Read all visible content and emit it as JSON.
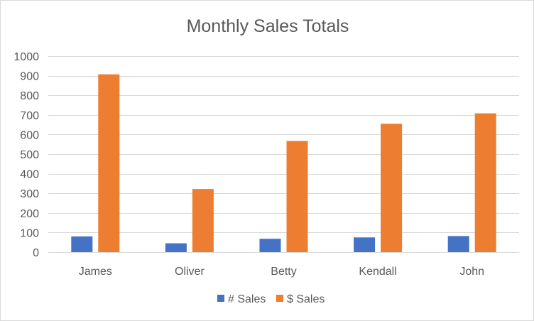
{
  "chart_data": {
    "type": "bar",
    "title": "Monthly Sales Totals",
    "categories": [
      "James",
      "Oliver",
      "Betty",
      "Kendall",
      "John"
    ],
    "series": [
      {
        "name": "# Sales",
        "values": [
          80,
          45,
          68,
          75,
          82
        ],
        "color": "#4472c4"
      },
      {
        "name": "$ Sales",
        "values": [
          907,
          322,
          567,
          655,
          708
        ],
        "color": "#ed7d31"
      }
    ],
    "ylim": [
      0,
      1000
    ],
    "yticks": [
      0,
      100,
      200,
      300,
      400,
      500,
      600,
      700,
      800,
      900,
      1000
    ],
    "grid": true,
    "legend": "bottom"
  }
}
